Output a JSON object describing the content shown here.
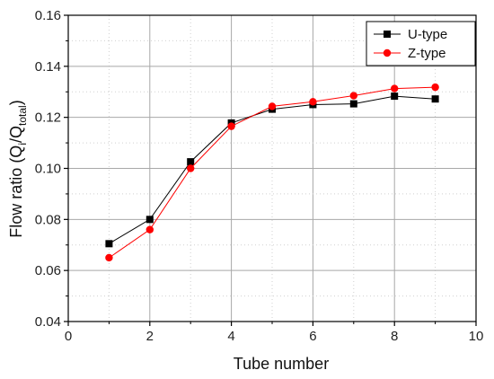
{
  "chart_data": {
    "type": "line",
    "title": "",
    "xlabel": "Tube number",
    "ylabel_parts": {
      "prefix": "Flow ratio (Q",
      "sub1": "i",
      "mid": "/Q",
      "sub2": "total",
      "suffix": ")"
    },
    "xlim": [
      0,
      10
    ],
    "ylim": [
      0.04,
      0.16
    ],
    "xticks": [
      0,
      2,
      4,
      6,
      8,
      10
    ],
    "xtick_labels": [
      "0",
      "2",
      "4",
      "6",
      "8",
      "10"
    ],
    "yticks": [
      0.04,
      0.06,
      0.08,
      0.1,
      0.12,
      0.14,
      0.16
    ],
    "ytick_labels": [
      "0.04",
      "0.06",
      "0.08",
      "0.10",
      "0.12",
      "0.14",
      "0.16"
    ],
    "grid": true,
    "legend_position": "top-right",
    "x": [
      1,
      2,
      3,
      4,
      5,
      6,
      7,
      8,
      9
    ],
    "series": [
      {
        "name": "U-type",
        "color": "#000000",
        "marker": "square",
        "values": [
          0.0705,
          0.08,
          0.1026,
          0.1178,
          0.1232,
          0.125,
          0.1253,
          0.1283,
          0.1272
        ]
      },
      {
        "name": "Z-type",
        "color": "#ff0000",
        "marker": "circle",
        "values": [
          0.065,
          0.076,
          0.1,
          0.1165,
          0.1243,
          0.1261,
          0.1285,
          0.1313,
          0.1318
        ]
      }
    ]
  }
}
